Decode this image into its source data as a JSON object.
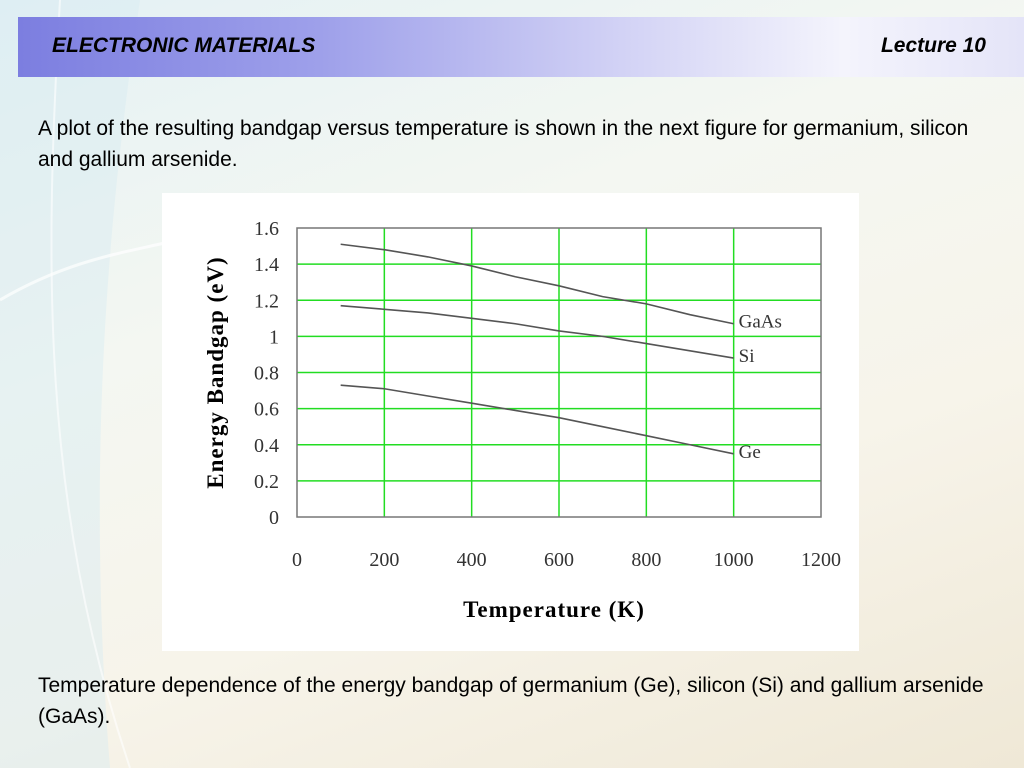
{
  "header": {
    "title": "ELECTRONIC MATERIALS",
    "lecture": "Lecture 10"
  },
  "intro": "A plot of the resulting bandgap versus temperature is shown in the next figure for germanium, silicon and gallium arsenide.",
  "caption": "Temperature dependence of the energy bandgap of germanium (Ge), silicon (Si) and gallium arsenide (GaAs).",
  "colors": {
    "grid": "#22dd22",
    "series_line": "#555555",
    "header_accent": "#7c7ee0"
  },
  "chart_data": {
    "type": "line",
    "xlabel": "Temperature (K)",
    "ylabel": "Energy Bandgap (eV)",
    "xlim": [
      0,
      1200
    ],
    "ylim": [
      0,
      1.6
    ],
    "xticks": [
      0,
      200,
      400,
      600,
      800,
      1000,
      1200
    ],
    "yticks": [
      0,
      0.2,
      0.4,
      0.6,
      0.8,
      1,
      1.2,
      1.4,
      1.6
    ],
    "grid": true,
    "x": [
      100,
      200,
      300,
      400,
      500,
      600,
      700,
      800,
      900,
      1000
    ],
    "series": [
      {
        "name": "GaAs",
        "values": [
          1.51,
          1.48,
          1.44,
          1.39,
          1.33,
          1.28,
          1.22,
          1.18,
          1.12,
          1.07
        ]
      },
      {
        "name": "Si",
        "values": [
          1.17,
          1.15,
          1.13,
          1.1,
          1.07,
          1.03,
          1.0,
          0.96,
          0.92,
          0.88
        ]
      },
      {
        "name": "Ge",
        "values": [
          0.73,
          0.71,
          0.67,
          0.63,
          0.59,
          0.55,
          0.5,
          0.45,
          0.4,
          0.35
        ]
      }
    ]
  }
}
